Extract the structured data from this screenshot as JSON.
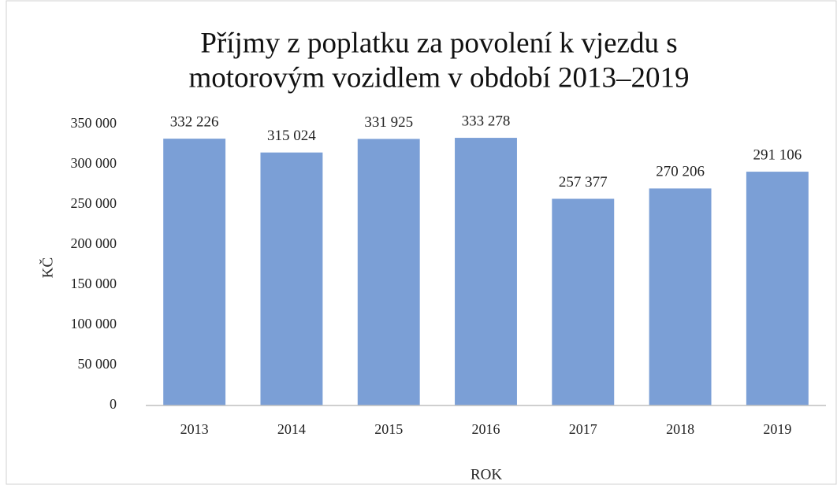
{
  "chart_data": {
    "type": "bar",
    "title": [
      "Příjmy z poplatku za povolení k vjezdu s",
      "motorovým vozidlem v období 2013–2019"
    ],
    "x_label": "ROK",
    "y_label": "KČ",
    "categories": [
      "2013",
      "2014",
      "2015",
      "2016",
      "2017",
      "2018",
      "2019"
    ],
    "values": [
      332226,
      315024,
      331925,
      333278,
      257377,
      270206,
      291106
    ],
    "value_labels": [
      "332 226",
      "315 024",
      "331 925",
      "333 278",
      "257 377",
      "270 206",
      "291 106"
    ],
    "color": "#7b9fd6",
    "ylim": [
      0,
      350000
    ],
    "yticks": [
      0,
      {
        "value": 50000,
        "label": "50 000"
      },
      {
        "value": 100000,
        "label": "100 000"
      },
      {
        "value": 150000,
        "label": "150 000"
      },
      {
        "value": 200000,
        "label": "200 000"
      },
      {
        "value": 250000,
        "label": "250 000"
      },
      {
        "value": 300000,
        "label": "300 000"
      },
      {
        "value": 350000,
        "label": "350 000"
      }
    ],
    "grid": false
  }
}
